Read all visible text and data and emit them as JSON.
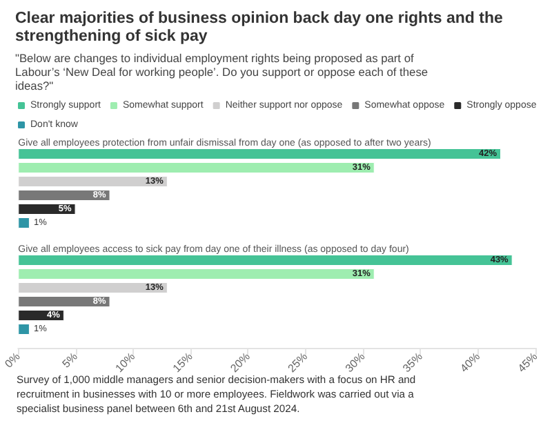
{
  "chart_data": {
    "type": "bar",
    "orientation": "horizontal",
    "title": "Clear majorities of business opinion back day one rights and the strengthening of sick pay",
    "subtitle": "\"Below are changes to individual employment rights being proposed as part of Labour’s ‘New Deal for working people’. Do you support or oppose each of these ideas?\"",
    "categories": [
      "Give all employees protection from unfair dismissal from day one (as opposed to after two years)",
      "Give all employees access to sick pay from day one of their illness (as opposed to day four)"
    ],
    "series": [
      {
        "name": "Strongly support",
        "color": "#45c396",
        "values": [
          42,
          43
        ],
        "value_labels": [
          "42%",
          "43%"
        ]
      },
      {
        "name": "Somewhat support",
        "color": "#9eedb0",
        "values": [
          31,
          31
        ],
        "value_labels": [
          "31%",
          "31%"
        ]
      },
      {
        "name": "Neither support nor oppose",
        "color": "#d0cfcf",
        "values": [
          13,
          13
        ],
        "value_labels": [
          "13%",
          "13%"
        ]
      },
      {
        "name": "Somewhat oppose",
        "color": "#787878",
        "values": [
          8,
          8
        ],
        "value_labels": [
          "8%",
          "8%"
        ]
      },
      {
        "name": "Strongly oppose",
        "color": "#2a2a2a",
        "values": [
          5,
          4
        ],
        "value_labels": [
          "5%",
          "4%"
        ]
      },
      {
        "name": "Don't know",
        "color": "#2e95a6",
        "values": [
          1,
          1
        ],
        "value_labels": [
          "1%",
          "1%"
        ]
      }
    ],
    "xlim": [
      0,
      45
    ],
    "xticks": [
      {
        "value": 0,
        "label": "0%"
      },
      {
        "value": 5,
        "label": "5%"
      },
      {
        "value": 10,
        "label": "10%"
      },
      {
        "value": 15,
        "label": "15%"
      },
      {
        "value": 20,
        "label": "20%"
      },
      {
        "value": 25,
        "label": "25%"
      },
      {
        "value": 30,
        "label": "30%"
      },
      {
        "value": 35,
        "label": "35%"
      },
      {
        "value": 40,
        "label": "40%"
      },
      {
        "value": 45,
        "label": "45%"
      }
    ],
    "legend": "top left",
    "grid": false,
    "annotations": [
      "Survey of 1,000 middle managers and senior decision-makers with a focus on HR and recruitment in businesses with 10 or more employees. Fieldwork was carried out via a specialist business panel between 6th and 21st August 2024."
    ]
  }
}
